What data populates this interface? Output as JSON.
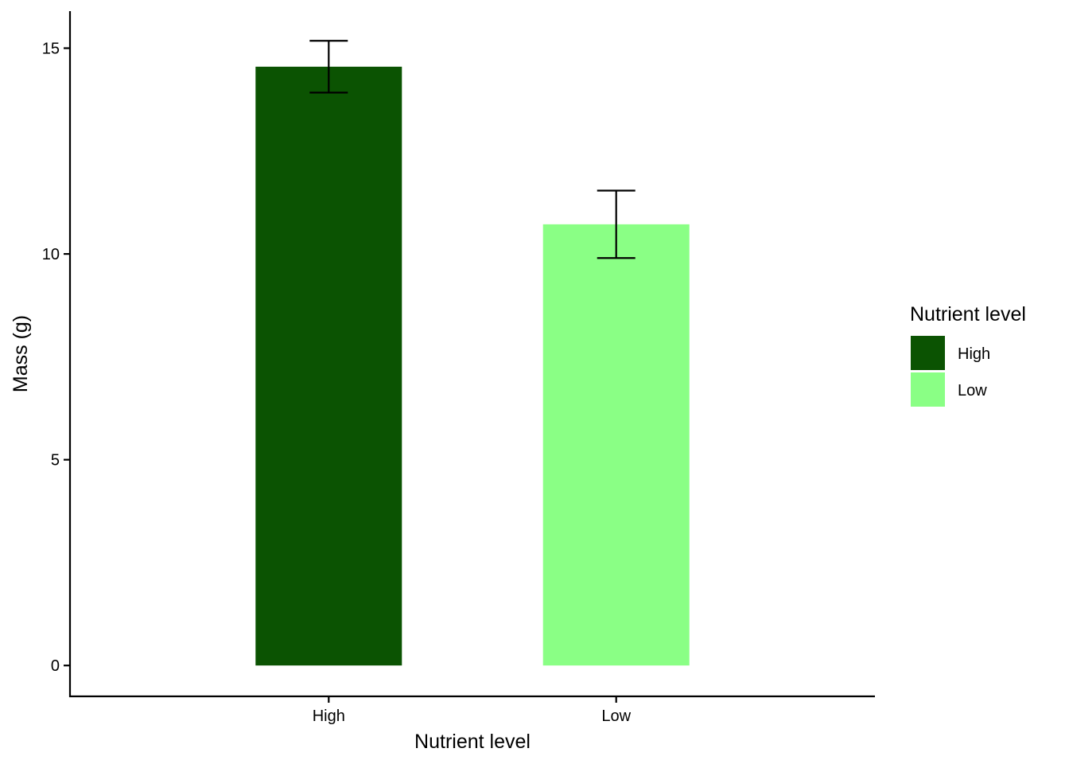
{
  "chart_data": {
    "type": "bar",
    "categories": [
      "High",
      "Low"
    ],
    "values": [
      14.55,
      10.72
    ],
    "error_bars": [
      {
        "lower": 13.92,
        "upper": 15.18
      },
      {
        "lower": 9.9,
        "upper": 11.54
      }
    ],
    "colors": [
      "#0b5302",
      "#8aff85"
    ],
    "title": "",
    "xlabel": "Nutrient level",
    "ylabel": "Mass (g)",
    "ylim": [
      -0.75,
      15.9
    ],
    "y_ticks": [
      0,
      5,
      10,
      15
    ],
    "grid": false,
    "legend": {
      "title": "Nutrient level",
      "placement": "right",
      "entries": [
        {
          "label": "High",
          "color": "#0b5302"
        },
        {
          "label": "Low",
          "color": "#8aff85"
        }
      ]
    }
  }
}
